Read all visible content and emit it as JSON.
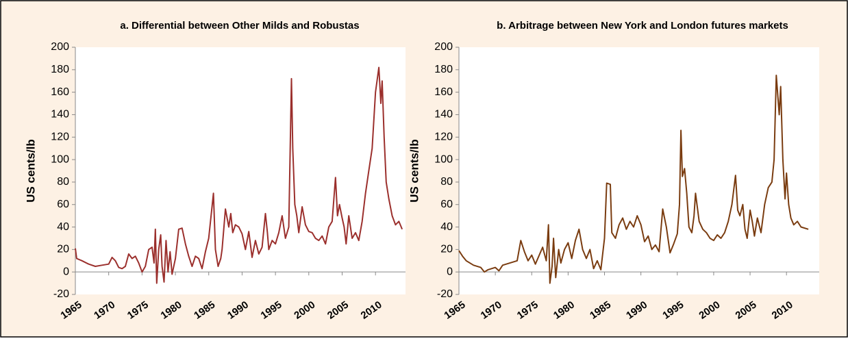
{
  "chart_data": [
    {
      "type": "line",
      "title": "a. Differential between Other Milds and Robustas",
      "y_label": "US cents/lb",
      "xlim": [
        1965,
        2014.5
      ],
      "xticks": [
        1965,
        1970,
        1975,
        1980,
        1985,
        1990,
        1995,
        2000,
        2005,
        2010
      ],
      "ylim": [
        -20,
        200
      ],
      "yticks": [
        -20,
        0,
        20,
        40,
        60,
        80,
        100,
        120,
        140,
        160,
        180,
        200
      ],
      "grid": false,
      "x": [
        1965,
        1965.2,
        1966,
        1967,
        1968,
        1969,
        1970,
        1970.5,
        1971,
        1971.5,
        1972,
        1972.5,
        1973,
        1973.5,
        1974,
        1974.5,
        1975,
        1975.5,
        1976,
        1976.5,
        1976.8,
        1977,
        1977.2,
        1977.5,
        1977.8,
        1978,
        1978.3,
        1978.6,
        1978.9,
        1979.2,
        1979.5,
        1980,
        1980.5,
        1981,
        1981.5,
        1982,
        1982.5,
        1983,
        1983.5,
        1984,
        1984.5,
        1985,
        1985.7,
        1986,
        1986.4,
        1986.8,
        1987,
        1987.5,
        1988,
        1988.3,
        1988.6,
        1989,
        1989.5,
        1990,
        1990.5,
        1991,
        1991.5,
        1992,
        1992.5,
        1993,
        1993.5,
        1993.8,
        1994,
        1994.5,
        1995,
        1995.5,
        1996,
        1996.5,
        1997,
        1997.4,
        1997.6,
        1997.9,
        1998.2,
        1998.5,
        1999,
        1999.5,
        2000,
        2000.5,
        2001,
        2001.5,
        2002,
        2002.5,
        2003,
        2003.5,
        2004,
        2004.3,
        2004.6,
        2005,
        2005.3,
        2005.6,
        2006,
        2006.5,
        2007,
        2007.5,
        2008,
        2008.5,
        2009,
        2009.5,
        2010,
        2010.5,
        2010.8,
        2011,
        2011.3,
        2011.6,
        2012,
        2012.5,
        2013,
        2013.5,
        2014
      ],
      "series": [
        {
          "color": "#9b2f2c",
          "values": [
            21,
            12,
            10,
            7,
            5,
            6,
            7,
            13,
            10,
            4,
            3,
            5,
            16,
            12,
            14,
            8,
            0,
            5,
            20,
            22,
            8,
            38,
            -10,
            20,
            33,
            5,
            -9,
            28,
            0,
            18,
            -2,
            12,
            38,
            39,
            25,
            14,
            5,
            14,
            12,
            3,
            18,
            30,
            70,
            20,
            5,
            12,
            20,
            56,
            40,
            52,
            35,
            42,
            40,
            34,
            20,
            36,
            13,
            28,
            16,
            22,
            52,
            35,
            20,
            28,
            25,
            35,
            50,
            30,
            40,
            172,
            110,
            60,
            50,
            35,
            58,
            42,
            36,
            35,
            30,
            28,
            32,
            25,
            40,
            45,
            84,
            50,
            60,
            48,
            40,
            25,
            50,
            30,
            35,
            28,
            45,
            70,
            90,
            110,
            160,
            182,
            150,
            170,
            120,
            80,
            65,
            50,
            42,
            45,
            38
          ]
        }
      ]
    },
    {
      "type": "line",
      "title": "b. Arbitrage between New York and London futures markets",
      "y_label": "US cents/lb",
      "xlim": [
        1965,
        2014.5
      ],
      "xticks": [
        1965,
        1970,
        1975,
        1980,
        1985,
        1990,
        1995,
        2000,
        2005,
        2010
      ],
      "ylim": [
        -20,
        200
      ],
      "yticks": [
        -20,
        0,
        20,
        40,
        60,
        80,
        100,
        120,
        140,
        160,
        180,
        200
      ],
      "grid": false,
      "x": [
        1965,
        1965.5,
        1966,
        1967,
        1968,
        1968.5,
        1969,
        1970,
        1970.5,
        1971,
        1972,
        1973,
        1973.5,
        1974,
        1974.5,
        1975,
        1975.5,
        1976.5,
        1977,
        1977.3,
        1977.5,
        1977.8,
        1978,
        1978.3,
        1978.7,
        1979,
        1979.5,
        1980,
        1980.5,
        1981,
        1981.5,
        1982,
        1982.5,
        1983,
        1983.5,
        1984,
        1984.5,
        1985,
        1985.3,
        1985.8,
        1986,
        1986.5,
        1987,
        1987.5,
        1988,
        1988.5,
        1989,
        1989.5,
        1990,
        1990.5,
        1991,
        1991.5,
        1992,
        1992.5,
        1993,
        1993.5,
        1994,
        1994.5,
        1995,
        1995.3,
        1995.5,
        1995.7,
        1996,
        1996.3,
        1996.6,
        1997,
        1997.3,
        1997.5,
        1998,
        1998.5,
        1999,
        1999.5,
        2000,
        2000.5,
        2001,
        2001.5,
        2002,
        2002.5,
        2003,
        2003.3,
        2003.6,
        2004,
        2004.3,
        2004.6,
        2005,
        2005.3,
        2005.6,
        2006,
        2006.5,
        2007,
        2007.5,
        2008,
        2008.3,
        2008.6,
        2009,
        2009.2,
        2009.5,
        2009.8,
        2010,
        2010.3,
        2010.6,
        2011,
        2011.5,
        2012,
        2013
      ],
      "series": [
        {
          "color": "#7a3c10",
          "values": [
            19,
            14,
            10,
            6,
            4,
            0,
            2,
            4,
            1,
            6,
            8,
            10,
            28,
            18,
            10,
            15,
            7,
            22,
            10,
            42,
            -10,
            5,
            30,
            -5,
            20,
            8,
            20,
            26,
            12,
            28,
            38,
            20,
            12,
            20,
            3,
            10,
            2,
            30,
            79,
            78,
            35,
            30,
            42,
            48,
            38,
            45,
            40,
            50,
            42,
            27,
            32,
            20,
            24,
            18,
            56,
            40,
            17,
            25,
            34,
            60,
            126,
            85,
            92,
            70,
            40,
            35,
            50,
            70,
            45,
            38,
            35,
            30,
            28,
            33,
            30,
            35,
            45,
            60,
            86,
            55,
            50,
            60,
            38,
            30,
            55,
            45,
            32,
            48,
            35,
            60,
            75,
            80,
            100,
            175,
            140,
            165,
            100,
            65,
            88,
            60,
            48,
            42,
            45,
            40,
            38
          ]
        }
      ]
    }
  ]
}
